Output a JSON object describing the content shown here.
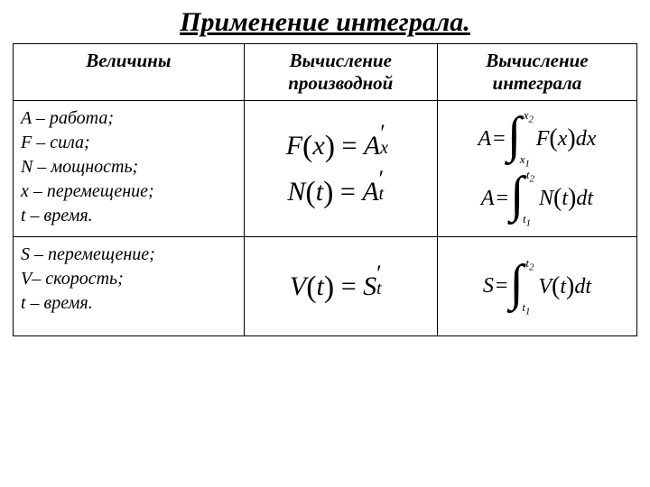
{
  "title": "Применение интеграла.",
  "headers": {
    "q": "Величины",
    "d": "Вычисление производной",
    "i": "Вычисление интеграла"
  },
  "row1": {
    "defs": {
      "l1": "A – работа;",
      "l2": "F – сила;",
      "l3": "N – мощность;",
      "l4": "x – перемещение;",
      "l5": "t – время."
    },
    "deriv1": {
      "lhs": "F",
      "lvar": "x",
      "rhs": "A",
      "sub": "x"
    },
    "deriv2": {
      "lhs": "N",
      "lvar": "t",
      "rhs": "A",
      "sub": "t"
    },
    "int1": {
      "lhs": "A",
      "ll": "x",
      "lln": "1",
      "ul": "x",
      "uln": "2",
      "fn": "F",
      "var": "x",
      "dv": "dx"
    },
    "int2": {
      "lhs": "A",
      "ll": "t",
      "lln": "1",
      "ul": "t",
      "uln": "2",
      "fn": "N",
      "var": "t",
      "dv": "dt"
    }
  },
  "row2": {
    "defs": {
      "l1": "S – перемещение;",
      "l2": "V– скорость;",
      "l3": "t – время."
    },
    "deriv": {
      "lhs": "V",
      "lvar": "t",
      "rhs": "S",
      "sub": "t"
    },
    "int": {
      "lhs": "S",
      "ll": "t",
      "lln": "1",
      "ul": "t",
      "uln": "2",
      "fn": "V",
      "var": "t",
      "dv": "dt"
    }
  },
  "style": {
    "text_color": "#000000",
    "bg_color": "#ffffff",
    "border_color": "#000000",
    "title_fontsize": 30,
    "header_fontsize": 21,
    "defs_fontsize": 20,
    "formula_fontsize": 30,
    "int_formula_fontsize": 24,
    "font_family": "Georgia, Times New Roman, serif",
    "columns": [
      "37%",
      "31%",
      "32%"
    ]
  }
}
